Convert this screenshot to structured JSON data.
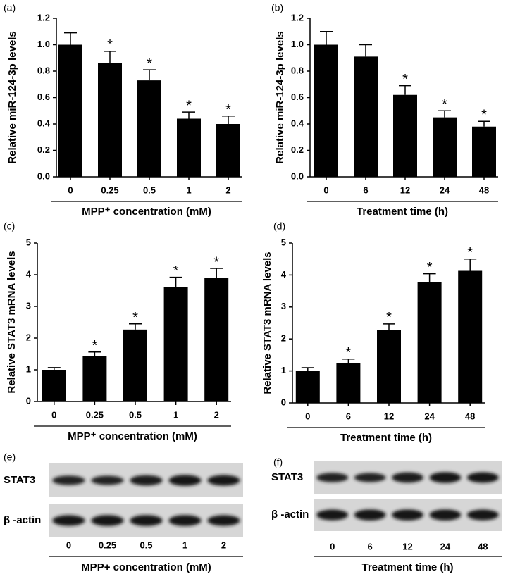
{
  "chart_data": [
    {
      "type": "bar",
      "label": "(a)",
      "ylabel": "Relative miR-124-3p levels",
      "xlabel": "MPP⁺ concentration (mM)",
      "categories": [
        "0",
        "0.25",
        "0.5",
        "1",
        "2"
      ],
      "values": [
        1.0,
        0.86,
        0.73,
        0.44,
        0.4
      ],
      "errors": [
        0.09,
        0.09,
        0.08,
        0.05,
        0.06
      ],
      "significance": [
        null,
        "*",
        "*",
        "*",
        "*"
      ],
      "color": "#000000",
      "ylim": [
        0,
        1.2
      ],
      "yticks": [
        {
          "value": 0,
          "label": "0.0"
        },
        0.2,
        0.4,
        0.6,
        0.8,
        {
          "value": 1,
          "label": "1.0"
        },
        1.2
      ]
    },
    {
      "type": "bar",
      "label": "(b)",
      "ylabel": "Relative miR-124-3p levels",
      "xlabel": "Treatment time (h)",
      "categories": [
        "0",
        "6",
        "12",
        "24",
        "48"
      ],
      "values": [
        1.0,
        0.91,
        0.62,
        0.45,
        0.38
      ],
      "errors": [
        0.1,
        0.09,
        0.07,
        0.05,
        0.04
      ],
      "significance": [
        null,
        null,
        "*",
        "*",
        "*"
      ],
      "color": "#000000",
      "ylim": [
        0,
        1.2
      ],
      "yticks": [
        {
          "value": 0,
          "label": "0.0"
        },
        0.2,
        0.4,
        0.6,
        0.8,
        {
          "value": 1,
          "label": "1.0"
        },
        1.2
      ]
    },
    {
      "type": "bar",
      "label": "(c)",
      "ylabel": "Relative STAT3 mRNA levels",
      "xlabel": "MPP⁺ concentration (mM)",
      "categories": [
        "0",
        "0.25",
        "0.5",
        "1",
        "2"
      ],
      "values": [
        1.0,
        1.43,
        2.27,
        3.62,
        3.9
      ],
      "errors": [
        0.07,
        0.13,
        0.18,
        0.3,
        0.3
      ],
      "significance": [
        null,
        "*",
        "*",
        "*",
        "*"
      ],
      "color": "#000000",
      "ylim": [
        0,
        5
      ],
      "yticks": [
        0,
        1,
        2,
        3,
        4,
        5
      ]
    },
    {
      "type": "bar",
      "label": "(d)",
      "ylabel": "Relative STAT3 mRNA levels",
      "xlabel": "Treatment time (h)",
      "categories": [
        "0",
        "6",
        "12",
        "24",
        "48"
      ],
      "values": [
        1.0,
        1.25,
        2.27,
        3.77,
        4.13
      ],
      "errors": [
        0.1,
        0.12,
        0.2,
        0.27,
        0.37
      ],
      "significance": [
        null,
        "*",
        "*",
        "*",
        "*"
      ],
      "color": "#000000",
      "ylim": [
        0,
        5
      ],
      "yticks": [
        0,
        1,
        2,
        3,
        4,
        5
      ]
    }
  ],
  "blots": [
    {
      "label": "(e)",
      "rows": [
        "STAT3",
        "β -actin"
      ],
      "lanes": [
        "0",
        "0.25",
        "0.5",
        "1",
        "2"
      ],
      "xlabel": "MPP+ concentration (mM)"
    },
    {
      "label": "(f)",
      "rows": [
        "STAT3",
        "β -actin"
      ],
      "lanes": [
        "0",
        "6",
        "12",
        "24",
        "48"
      ],
      "xlabel": "Treatment time (h)"
    }
  ]
}
